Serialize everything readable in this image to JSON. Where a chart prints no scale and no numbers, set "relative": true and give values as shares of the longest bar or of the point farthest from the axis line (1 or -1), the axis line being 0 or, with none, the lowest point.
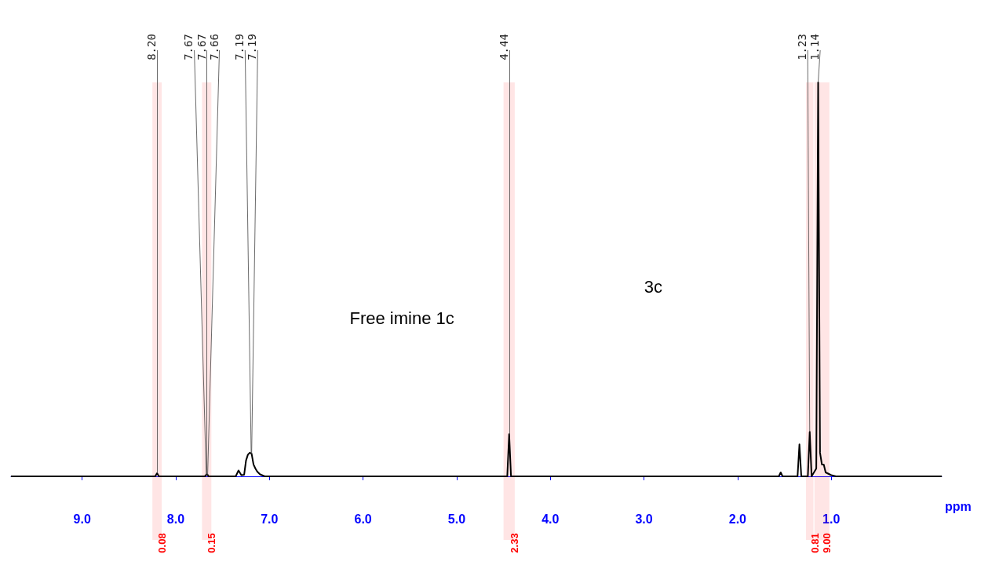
{
  "chart_data": {
    "type": "line",
    "relative": true,
    "xlabel": "ppm",
    "xlim": [
      9.76,
      -0.18
    ],
    "xticks": [
      {
        "value": 9,
        "label": "9.0"
      },
      {
        "value": 8,
        "label": "8.0"
      },
      {
        "value": 7,
        "label": "7.0"
      },
      {
        "value": 6,
        "label": "6.0"
      },
      {
        "value": 5,
        "label": "5.0"
      },
      {
        "value": 4,
        "label": "4.0"
      },
      {
        "value": 3,
        "label": "3.0"
      },
      {
        "value": 2,
        "label": "2.0"
      },
      {
        "value": 1,
        "label": "1.0"
      }
    ],
    "grid": false,
    "marker": "none",
    "series": [
      {
        "color": "#000000",
        "x": [
          9.76,
          8.22,
          8.2,
          8.18,
          7.69,
          7.675,
          7.67,
          7.66,
          7.65,
          7.36,
          7.33,
          7.3,
          7.27,
          7.25,
          7.23,
          7.21,
          7.195,
          7.19,
          7.17,
          7.15,
          7.13,
          7.1,
          7.05,
          4.46,
          4.44,
          4.42,
          1.56,
          1.54,
          1.52,
          1.36,
          1.34,
          1.32,
          1.25,
          1.23,
          1.21,
          1.16,
          1.14,
          1.12,
          1.1,
          1.08,
          1.06,
          1.0,
          0.95,
          -0.18
        ],
        "values": [
          0,
          0,
          0.008,
          0,
          0,
          0.004,
          0.005,
          0.004,
          0,
          0,
          0.015,
          0.003,
          0.004,
          0.04,
          0.055,
          0.06,
          0.058,
          0.057,
          0.03,
          0.02,
          0.012,
          0.005,
          0,
          0,
          0.107,
          0,
          0,
          0.01,
          0,
          0,
          0.081,
          0,
          0,
          0.113,
          0,
          0.02,
          1.0,
          0.06,
          0.03,
          0.03,
          0.01,
          0.003,
          0,
          0
        ]
      }
    ],
    "annotations": [
      "Free imine 1c",
      "3c",
      {
        "text": "8.20",
        "x": 8.2,
        "y": 0.008
      },
      {
        "text": "7.67",
        "x": 7.675,
        "y": 0.004
      },
      {
        "text": "7.67",
        "x": 7.67,
        "y": 0.005
      },
      {
        "text": "7.66",
        "x": 7.66,
        "y": 0.004
      },
      {
        "text": "7.19",
        "x": 7.195,
        "y": 0.058
      },
      {
        "text": "7.19",
        "x": 7.19,
        "y": 0.057
      },
      {
        "text": "4.44",
        "x": 4.44,
        "y": 0.107
      },
      {
        "text": "1.23",
        "x": 1.23,
        "y": 0.113
      },
      {
        "text": "1.14",
        "x": 1.14,
        "y": 1.0
      }
    ],
    "bands": [
      {
        "axis": "x",
        "from": 8.25,
        "to": 8.15,
        "label": "0.08",
        "color": "#ff0000"
      },
      {
        "axis": "x",
        "from": 7.72,
        "to": 7.62,
        "label": "0.15",
        "color": "#ff0000"
      },
      {
        "axis": "x",
        "from": 4.5,
        "to": 4.38,
        "label": "2.33",
        "color": "#ff0000"
      },
      {
        "axis": "x",
        "from": 1.27,
        "to": 1.19,
        "label": "0.81",
        "color": "#ff0000"
      },
      {
        "axis": "x",
        "from": 1.18,
        "to": 1.02,
        "label": "9.00",
        "color": "#ff0000"
      }
    ]
  }
}
